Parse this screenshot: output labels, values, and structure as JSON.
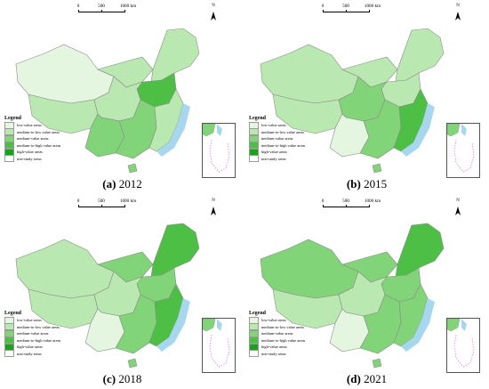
{
  "figure": {
    "legend_title": "Legend",
    "legend_items": [
      {
        "label": "low-value areas",
        "color": "#e4f6e0"
      },
      {
        "label": "medium-to-low value areas",
        "color": "#b9e8b0"
      },
      {
        "label": "medium-value areas",
        "color": "#82d478"
      },
      {
        "label": "medium-to-high value areas",
        "color": "#4cbf44"
      },
      {
        "label": "high-value areas",
        "color": "#16a516"
      },
      {
        "label": "non-study areas",
        "color": "#ffffff"
      }
    ],
    "scale_labels": [
      "0",
      "500",
      "1000 km"
    ],
    "north_label": "N",
    "ocean_color": "#a7d7ee",
    "panels": [
      {
        "letter": "(a)",
        "year": "2012",
        "region_levels": {
          "northwest": 0,
          "north": 1,
          "northeast": 1,
          "north_plain": 3,
          "central": 1,
          "southwest": 2,
          "southeast": 2,
          "coast": 1,
          "tibet": 1,
          "hainan": 2
        }
      },
      {
        "letter": "(b)",
        "year": "2015",
        "region_levels": {
          "northwest": 1,
          "north": 1,
          "northeast": 1,
          "north_plain": 1,
          "central": 2,
          "southwest": 0,
          "southeast": 2,
          "coast": 3,
          "tibet": 1,
          "hainan": 2
        }
      },
      {
        "letter": "(c)",
        "year": "2018",
        "region_levels": {
          "northwest": 1,
          "north": 2,
          "northeast": 3,
          "north_plain": 2,
          "central": 1,
          "southwest": 0,
          "southeast": 2,
          "coast": 3,
          "tibet": 1,
          "hainan": 2
        }
      },
      {
        "letter": "(d)",
        "year": "2021",
        "region_levels": {
          "northwest": 2,
          "north": 2,
          "northeast": 3,
          "north_plain": 2,
          "central": 1,
          "southwest": 0,
          "southeast": 2,
          "coast": 2,
          "tibet": 1,
          "hainan": 2
        }
      }
    ]
  }
}
